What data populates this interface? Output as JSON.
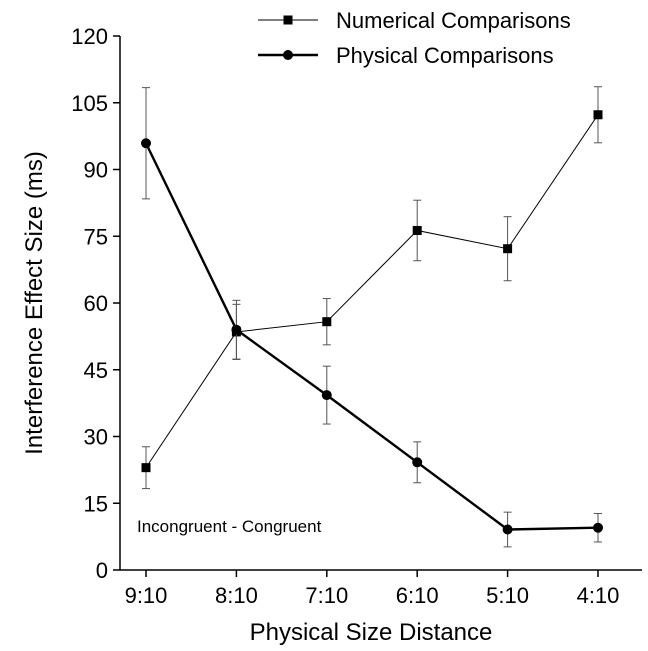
{
  "chart_data": {
    "type": "line",
    "title": "",
    "xlabel": "Physical Size Distance",
    "ylabel": "Interference Effect Size (ms)",
    "categories": [
      "9:10",
      "8:10",
      "7:10",
      "6:10",
      "5:10",
      "4:10"
    ],
    "ylim": [
      0,
      120
    ],
    "yticks": [
      0,
      15,
      30,
      45,
      60,
      75,
      90,
      105,
      120
    ],
    "grid": false,
    "legend_position": "top-right",
    "annotation": "Incongruent - Congruent",
    "series": [
      {
        "name": "Numerical Comparisons",
        "marker": "square",
        "line_weight": "thin",
        "color": "#000000",
        "values": [
          23,
          53.5,
          55.8,
          76.3,
          72.2,
          102.3
        ],
        "errors": [
          4.7,
          6.2,
          5.2,
          6.8,
          7.2,
          6.3
        ]
      },
      {
        "name": "Physical Comparisons",
        "marker": "circle",
        "line_weight": "thick",
        "color": "#000000",
        "values": [
          95.9,
          54,
          39.3,
          24.2,
          9.1,
          9.5
        ],
        "errors": [
          12.5,
          6.6,
          6.5,
          4.6,
          3.9,
          3.2
        ]
      }
    ]
  }
}
